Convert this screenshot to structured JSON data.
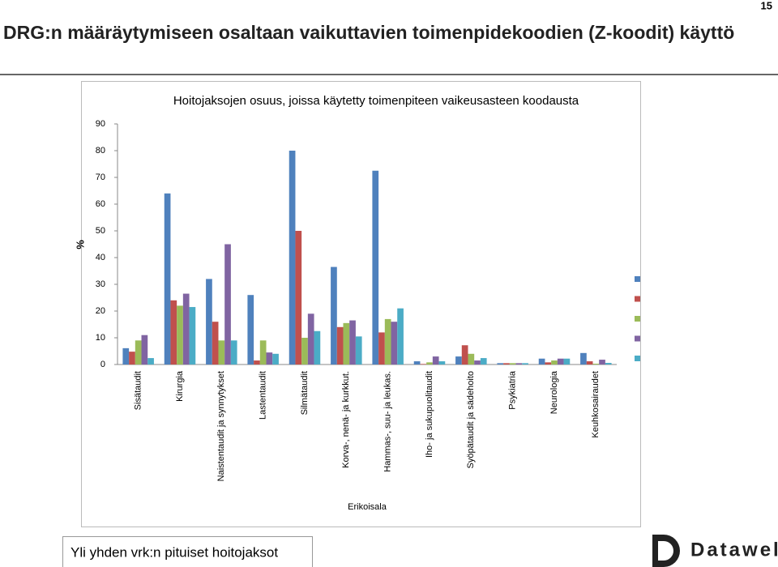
{
  "slide_number": "15",
  "title": "DRG:n määräytymiseen osaltaan vaikuttavien toimenpidekoodien (Z-koodit) käyttö",
  "chart_data": {
    "type": "bar",
    "title": "Hoitojaksojen osuus, joissa käytetty toimenpiteen vaikeusasteen koodausta",
    "y_label": "%",
    "x_label": "Erikoisala",
    "categories": [
      "Sisätaudit",
      "Kirurgia",
      "Naistentaudit ja synnytykset",
      "Lastentaudit",
      "Silmätaudit",
      "Korva-, nenä- ja kurkkut.",
      "Hammas-, suu- ja leukas.",
      "Iho- ja sukupuolitaudit",
      "Syöpätaudit ja sädehoito",
      "Psykiatria",
      "Neurologia",
      "Keuhkosairaudet"
    ],
    "series": [
      {
        "color": "#4f81bd",
        "values": [
          6.1,
          64,
          32,
          26,
          80,
          36.5,
          72.5,
          1.2,
          3,
          0.5,
          2.2,
          4.3
        ]
      },
      {
        "color": "#c0504d",
        "values": [
          4.8,
          24,
          16,
          1.5,
          50,
          14,
          12,
          0.2,
          7.2,
          0.5,
          0.8,
          1.2
        ]
      },
      {
        "color": "#9bbb59",
        "values": [
          9,
          22,
          9,
          9,
          10,
          15.5,
          17,
          0.8,
          4,
          0.5,
          1.5,
          0.3
        ]
      },
      {
        "color": "#8064a2",
        "values": [
          11,
          26.5,
          45,
          4.5,
          19,
          16.5,
          16,
          3,
          1.5,
          0.5,
          2.2,
          1.8
        ]
      },
      {
        "color": "#4bacc6",
        "values": [
          2.4,
          21.5,
          9,
          4,
          12.5,
          10.5,
          21,
          1.2,
          2.4,
          0.5,
          2.2,
          0.6
        ]
      }
    ],
    "ylim": [
      0,
      90
    ],
    "yticks": [
      0,
      10,
      20,
      30,
      40,
      50,
      60,
      70,
      80,
      90
    ],
    "grid": false
  },
  "footer": "Yli yhden vrk:n pituiset hoitojaksot",
  "logo": "Datawell"
}
